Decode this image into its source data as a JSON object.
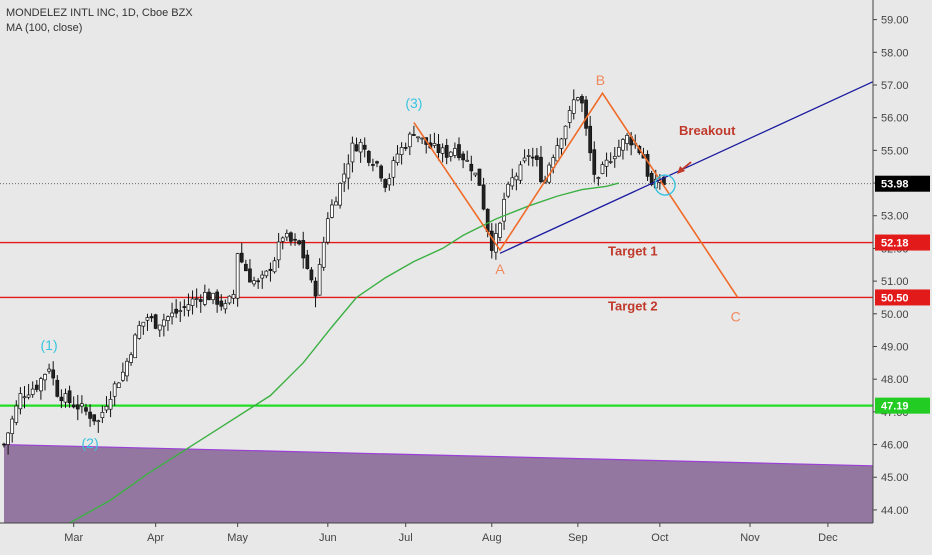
{
  "legend": {
    "symbol_line": "MONDELEZ INTL INC, 1D, Cboe BZX",
    "indicator_line": "MA (100, close)"
  },
  "colors": {
    "background": "#e8e8e8",
    "up_candle": "#ffffff",
    "down_candle": "#222222",
    "ma_line": "#3cb043",
    "trend_line": "#1a1aa0",
    "pattern_line": "#f06a28",
    "target_line": "#e31a1a",
    "support_line": "#22dd22",
    "purple_zone": "#8a6a98",
    "wave_label": "#39c3e0",
    "annotation_red": "#c0392b",
    "pattern_label": "#ef8a60"
  },
  "chart_data": {
    "type": "candlestick",
    "ylim": [
      43.6,
      59.6
    ],
    "x_axis": {
      "ticks": [
        "Mar",
        "Apr",
        "May",
        "Jun",
        "Jul",
        "Aug",
        "Sep",
        "Oct",
        "Nov",
        "Dec"
      ],
      "tick_days": [
        17,
        37,
        57,
        79,
        98,
        119,
        140,
        160,
        182,
        201
      ]
    },
    "y_axis": {
      "ticks": [
        "44.00",
        "45.00",
        "46.00",
        "47.00",
        "48.00",
        "49.00",
        "50.00",
        "51.00",
        "52.00",
        "53.00",
        "54.00",
        "55.00",
        "56.00",
        "57.00",
        "58.00",
        "59.00"
      ],
      "tick_values": [
        44,
        45,
        46,
        47,
        48,
        49,
        50,
        51,
        52,
        53,
        54,
        55,
        56,
        57,
        58,
        59
      ],
      "price_badges": [
        {
          "label": "53.98",
          "value": 53.98,
          "color": "#000000"
        },
        {
          "label": "52.18",
          "value": 52.18,
          "color": "#e31a1a"
        },
        {
          "label": "50.50",
          "value": 50.5,
          "color": "#e31a1a"
        },
        {
          "label": "47.19",
          "value": 47.19,
          "color": "#22cc22"
        }
      ]
    },
    "close_path": [
      [
        0,
        46.0
      ],
      [
        4,
        47.5
      ],
      [
        8,
        47.8
      ],
      [
        11,
        48.4
      ],
      [
        13,
        47.6
      ],
      [
        16,
        47.3
      ],
      [
        19,
        47.1
      ],
      [
        21,
        46.9
      ],
      [
        23,
        46.7
      ],
      [
        25,
        47.3
      ],
      [
        27,
        47.8
      ],
      [
        29,
        48.2
      ],
      [
        31,
        48.9
      ],
      [
        33,
        49.6
      ],
      [
        35,
        49.9
      ],
      [
        37,
        49.7
      ],
      [
        40,
        49.9
      ],
      [
        43,
        50.1
      ],
      [
        46,
        50.4
      ],
      [
        49,
        50.6
      ],
      [
        52,
        50.4
      ],
      [
        54,
        50.2
      ],
      [
        56,
        50.6
      ],
      [
        57,
        51.9
      ],
      [
        58,
        51.6
      ],
      [
        60,
        51.1
      ],
      [
        62,
        50.9
      ],
      [
        64,
        51.2
      ],
      [
        66,
        51.7
      ],
      [
        68,
        52.4
      ],
      [
        70,
        52.2
      ],
      [
        72,
        52.1
      ],
      [
        74,
        51.4
      ],
      [
        75,
        50.9
      ],
      [
        76,
        50.7
      ],
      [
        77,
        51.4
      ],
      [
        78,
        52.2
      ],
      [
        79,
        53.0
      ],
      [
        81,
        53.6
      ],
      [
        83,
        54.3
      ],
      [
        85,
        55.1
      ],
      [
        87,
        55.2
      ],
      [
        89,
        54.8
      ],
      [
        91,
        54.6
      ],
      [
        93,
        54.0
      ],
      [
        94,
        54.2
      ],
      [
        96,
        54.9
      ],
      [
        98,
        55.2
      ],
      [
        100,
        55.6
      ],
      [
        102,
        55.3
      ],
      [
        104,
        55.1
      ],
      [
        106,
        55.0
      ],
      [
        108,
        54.9
      ],
      [
        110,
        55.1
      ],
      [
        112,
        54.8
      ],
      [
        114,
        54.5
      ],
      [
        116,
        54.0
      ],
      [
        117,
        53.3
      ],
      [
        118,
        52.6
      ],
      [
        119,
        52.1
      ],
      [
        120,
        52.3
      ],
      [
        121,
        52.7
      ],
      [
        122,
        53.5
      ],
      [
        124,
        54.1
      ],
      [
        126,
        54.4
      ],
      [
        128,
        54.9
      ],
      [
        130,
        54.6
      ],
      [
        131,
        54.2
      ],
      [
        132,
        54.1
      ],
      [
        133,
        54.6
      ],
      [
        135,
        55.2
      ],
      [
        137,
        55.8
      ],
      [
        138,
        56.1
      ],
      [
        139,
        56.5
      ],
      [
        140,
        56.7
      ],
      [
        141,
        56.4
      ],
      [
        142,
        55.6
      ],
      [
        143,
        54.9
      ],
      [
        144,
        54.3
      ],
      [
        145,
        54.0
      ],
      [
        146,
        54.4
      ],
      [
        148,
        54.8
      ],
      [
        150,
        55.1
      ],
      [
        152,
        55.4
      ],
      [
        154,
        55.2
      ],
      [
        156,
        54.8
      ],
      [
        157,
        54.3
      ],
      [
        158,
        53.9
      ],
      [
        159,
        53.95
      ],
      [
        160,
        54.1
      ],
      [
        161,
        53.98
      ]
    ],
    "ma100_path": [
      [
        16,
        43.6
      ],
      [
        26,
        44.3
      ],
      [
        35,
        45.1
      ],
      [
        45,
        45.9
      ],
      [
        55,
        46.7
      ],
      [
        65,
        47.5
      ],
      [
        73,
        48.5
      ],
      [
        80,
        49.6
      ],
      [
        86,
        50.5
      ],
      [
        93,
        51.1
      ],
      [
        100,
        51.6
      ],
      [
        107,
        52.0
      ],
      [
        112,
        52.4
      ],
      [
        120,
        52.9
      ],
      [
        128,
        53.3
      ],
      [
        135,
        53.6
      ],
      [
        141,
        53.8
      ],
      [
        147,
        53.9
      ],
      [
        150,
        54.0
      ]
    ],
    "pattern_points": [
      {
        "label": "(3)",
        "day": 100,
        "price": 55.85,
        "role": "wave"
      },
      {
        "label": "A",
        "day": 121,
        "price": 51.95,
        "role": "pattern"
      },
      {
        "label": "B",
        "day": 146,
        "price": 56.75,
        "role": "pattern"
      },
      {
        "label": "C",
        "day": 179,
        "price": 50.5,
        "role": "pattern"
      }
    ],
    "trend_line_points": [
      [
        121,
        51.85
      ],
      [
        212,
        57.1
      ]
    ],
    "target_1": {
      "label": "Target 1",
      "value": 52.18
    },
    "target_2": {
      "label": "Target 2",
      "value": 50.5
    },
    "support": {
      "value": 47.19
    },
    "purple_zone_top": [
      [
        0,
        46.0
      ],
      [
        212,
        45.35
      ]
    ],
    "wave_labels": [
      {
        "label": "(1)",
        "day": 11,
        "price": 48.9
      },
      {
        "label": "(2)",
        "day": 21,
        "price": 45.9
      },
      {
        "label": "(3)",
        "day": 100,
        "price": 56.3
      }
    ],
    "breakout": {
      "label": "Breakout",
      "day": 162,
      "price": 54.0
    }
  }
}
